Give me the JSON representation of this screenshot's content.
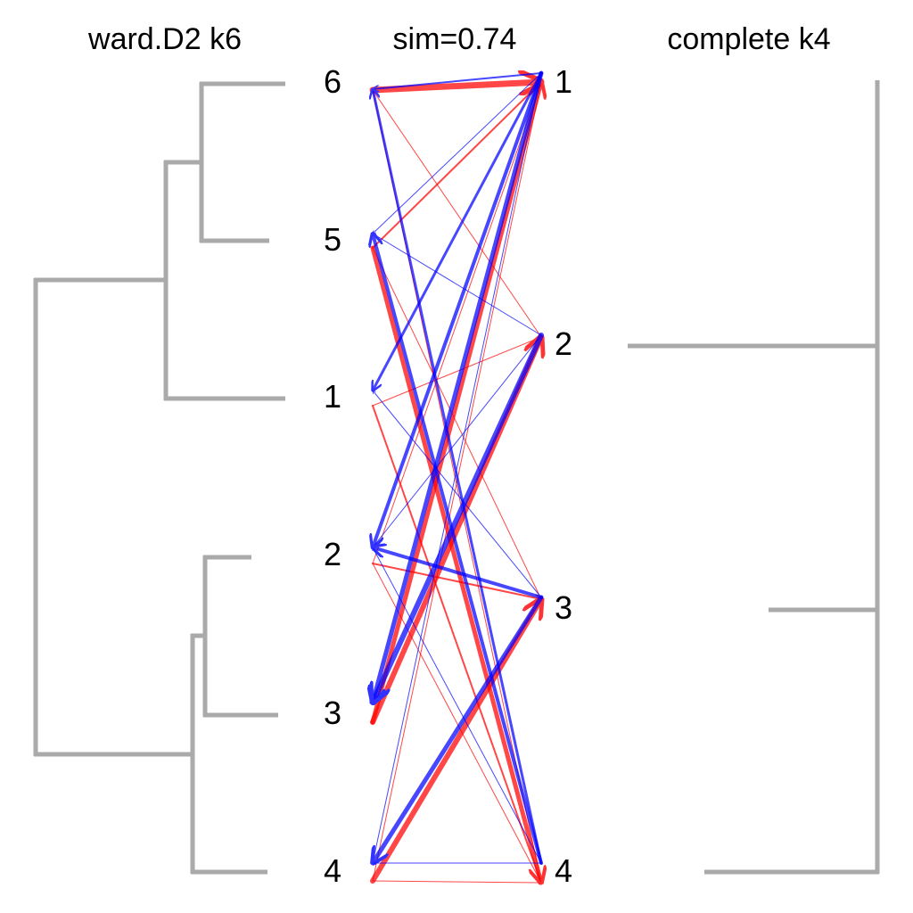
{
  "titles": {
    "left": "ward.D2 k6",
    "center": "sim=0.74",
    "right": "complete k4"
  },
  "left_labels": [
    "6",
    "5",
    "1",
    "2",
    "3",
    "4"
  ],
  "right_labels": [
    "1",
    "2",
    "3",
    "4"
  ],
  "colors": {
    "dendrogram": "#aaaaaa",
    "red_edges": "#ff0000",
    "blue_edges": "#0000ff"
  },
  "red_edges": [
    {
      "from": "6",
      "to": "1",
      "weight": 7
    },
    {
      "from": "6",
      "to": "2",
      "weight": 1
    },
    {
      "from": "6",
      "to": "4",
      "weight": 1
    },
    {
      "from": "5",
      "to": "1",
      "weight": 2
    },
    {
      "from": "5",
      "to": "4",
      "weight": 5
    },
    {
      "from": "5",
      "to": "3",
      "weight": 1
    },
    {
      "from": "1",
      "to": "4",
      "weight": 2
    },
    {
      "from": "1",
      "to": "2",
      "weight": 1
    },
    {
      "from": "2",
      "to": "1",
      "weight": 1
    },
    {
      "from": "2",
      "to": "3",
      "weight": 2
    },
    {
      "from": "2",
      "to": "4",
      "weight": 1
    },
    {
      "from": "3",
      "to": "1",
      "weight": 5
    },
    {
      "from": "3",
      "to": "2",
      "weight": 6
    },
    {
      "from": "4",
      "to": "3",
      "weight": 6
    },
    {
      "from": "4",
      "to": "4",
      "weight": 1
    },
    {
      "from": "4",
      "to": "1",
      "weight": 1
    }
  ],
  "blue_edges": [
    {
      "from": "1",
      "to": "6",
      "weight": 2
    },
    {
      "from": "1",
      "to": "5",
      "weight": 1
    },
    {
      "from": "1",
      "to": "1",
      "weight": 3
    },
    {
      "from": "1",
      "to": "2",
      "weight": 4
    },
    {
      "from": "1",
      "to": "3",
      "weight": 5
    },
    {
      "from": "1",
      "to": "4",
      "weight": 1
    },
    {
      "from": "2",
      "to": "5",
      "weight": 1
    },
    {
      "from": "2",
      "to": "3",
      "weight": 6
    },
    {
      "from": "2",
      "to": "2",
      "weight": 1
    },
    {
      "from": "3",
      "to": "2",
      "weight": 4
    },
    {
      "from": "3",
      "to": "4",
      "weight": 5
    },
    {
      "from": "3",
      "to": "1",
      "weight": 1
    },
    {
      "from": "4",
      "to": "6",
      "weight": 3
    },
    {
      "from": "4",
      "to": "5",
      "weight": 4
    },
    {
      "from": "4",
      "to": "4",
      "weight": 1
    },
    {
      "from": "4",
      "to": "2",
      "weight": 1
    }
  ]
}
